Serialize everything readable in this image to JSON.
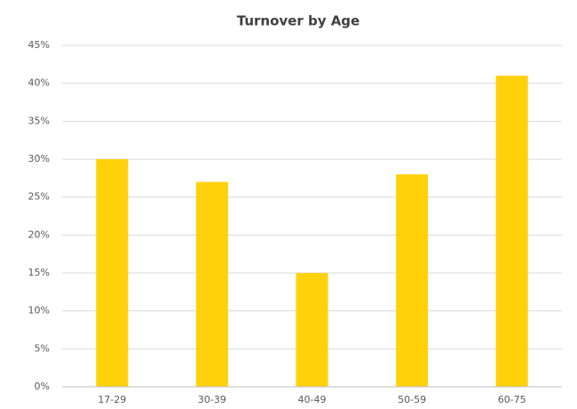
{
  "chart_data": {
    "type": "bar",
    "title": "Turnover by Age",
    "categories": [
      "17-29",
      "30-39",
      "40-49",
      "50-59",
      "60-75"
    ],
    "values": [
      30,
      27,
      15,
      28,
      41
    ],
    "color": "#ffd10a",
    "ylim": [
      0,
      45
    ],
    "yticks": [
      {
        "value": 0,
        "label": "0%"
      },
      {
        "value": 5,
        "label": "5%"
      },
      {
        "value": 10,
        "label": "10%"
      },
      {
        "value": 15,
        "label": "15%"
      },
      {
        "value": 20,
        "label": "20%"
      },
      {
        "value": 25,
        "label": "25%"
      },
      {
        "value": 30,
        "label": "30%"
      },
      {
        "value": 35,
        "label": "35%"
      },
      {
        "value": 40,
        "label": "40%"
      },
      {
        "value": 45,
        "label": "45%"
      }
    ],
    "grid": true
  }
}
